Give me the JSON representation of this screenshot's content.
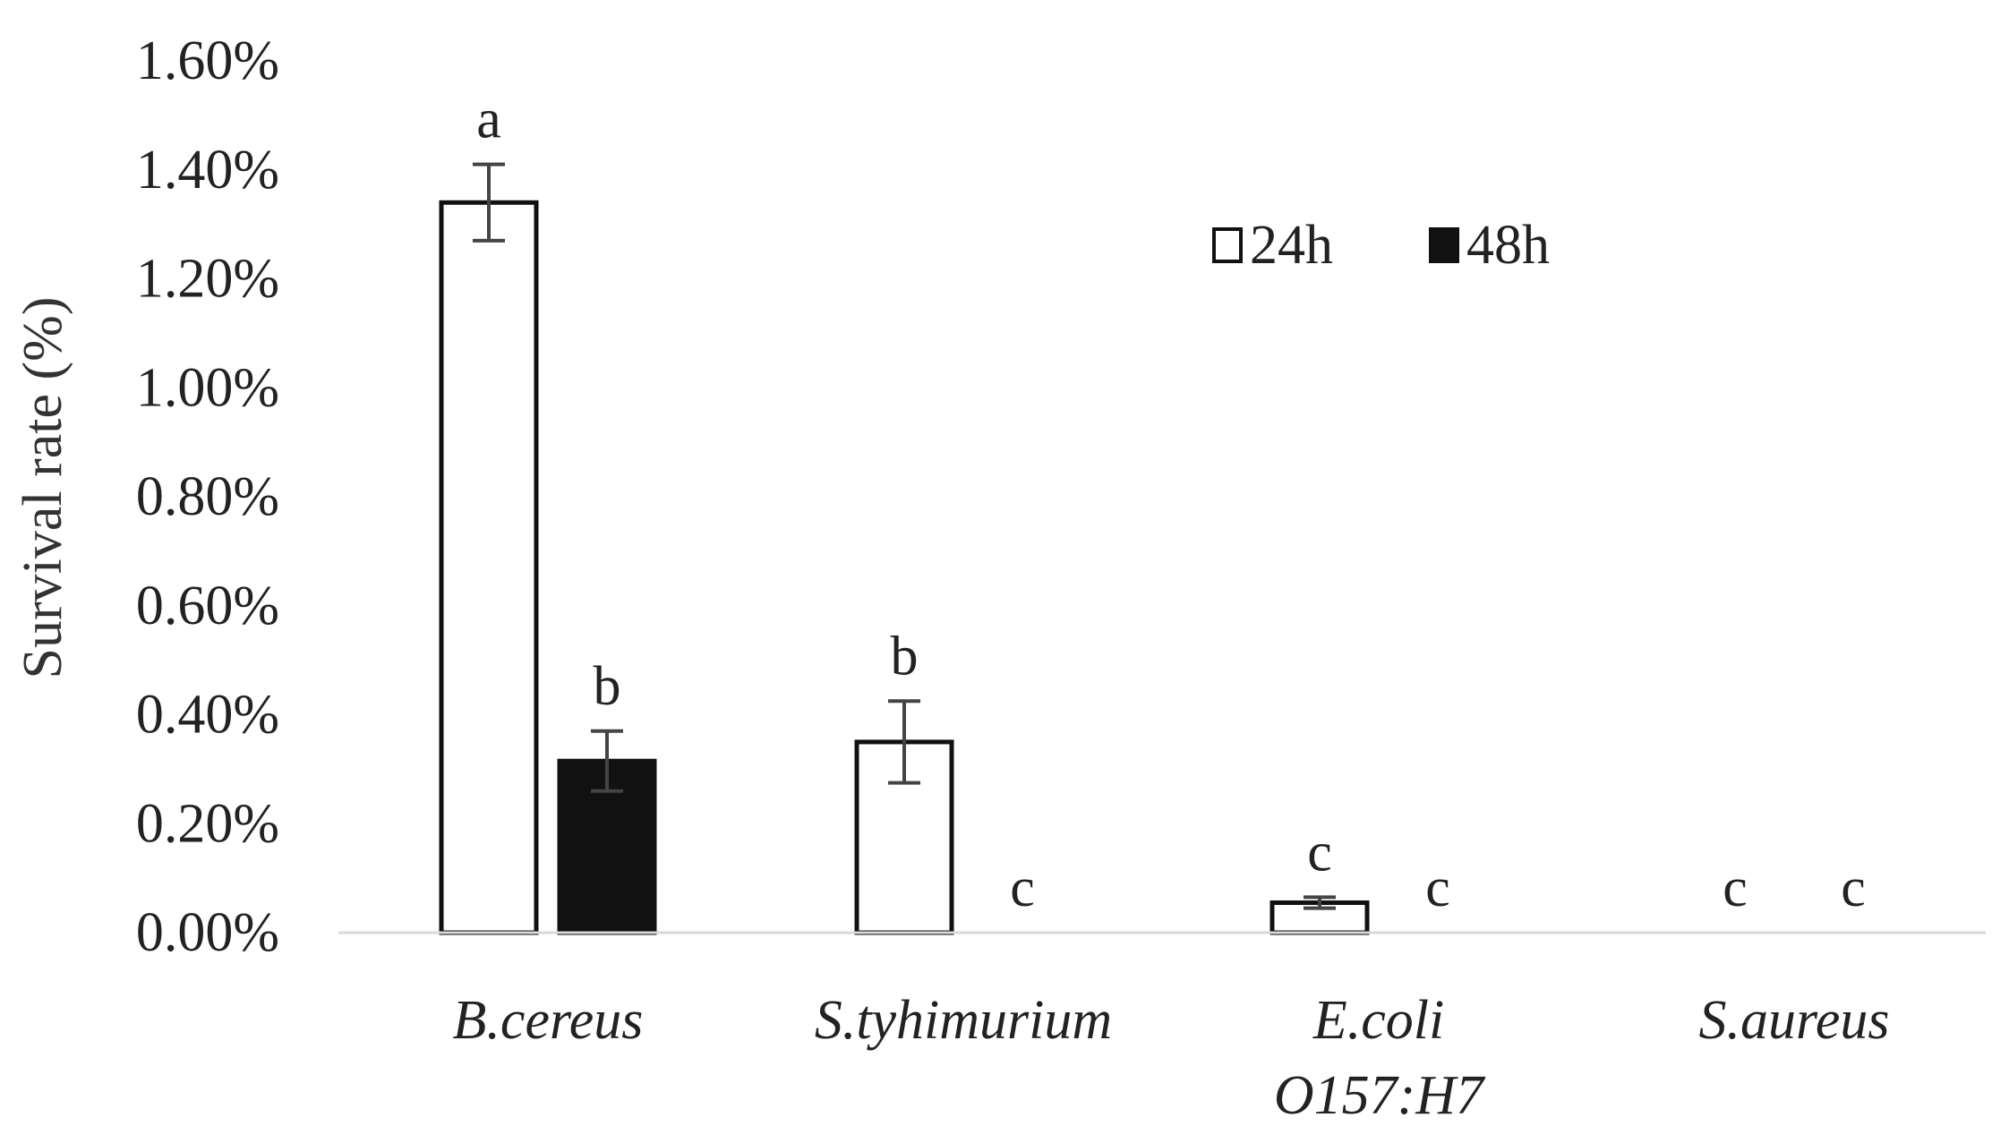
{
  "chart_data": {
    "type": "bar",
    "title": "",
    "xlabel": "",
    "ylabel": "Survival rate (%)",
    "ylim": [
      0,
      1.6
    ],
    "yticks": [
      0,
      0.2,
      0.4,
      0.6,
      0.8,
      1.0,
      1.2,
      1.4,
      1.6
    ],
    "ytick_labels": [
      "0.00%",
      "0.20%",
      "0.40%",
      "0.60%",
      "0.80%",
      "1.00%",
      "1.20%",
      "1.40%",
      "1.60%"
    ],
    "grid": false,
    "legend_position": "top-right",
    "categories": [
      {
        "lines": [
          "B.cereus"
        ]
      },
      {
        "lines": [
          "S.tyhimurium"
        ]
      },
      {
        "lines": [
          "E.coli",
          "O157:H7"
        ]
      },
      {
        "lines": [
          "S.aureus"
        ]
      }
    ],
    "series": [
      {
        "name": "24h",
        "fill": "#ffffff",
        "stroke": "#111111",
        "values": [
          1.34,
          0.35,
          0.055,
          0.0
        ],
        "errors": [
          0.07,
          0.075,
          0.01,
          0.0
        ],
        "sig": [
          "a",
          "b",
          "c",
          "c"
        ]
      },
      {
        "name": "48h",
        "fill": "#111111",
        "stroke": "#111111",
        "values": [
          0.315,
          0.0,
          0.0,
          0.0
        ],
        "errors": [
          0.055,
          0.0,
          0.0,
          0.0
        ],
        "sig": [
          "b",
          "c",
          "c",
          "c"
        ]
      }
    ]
  }
}
